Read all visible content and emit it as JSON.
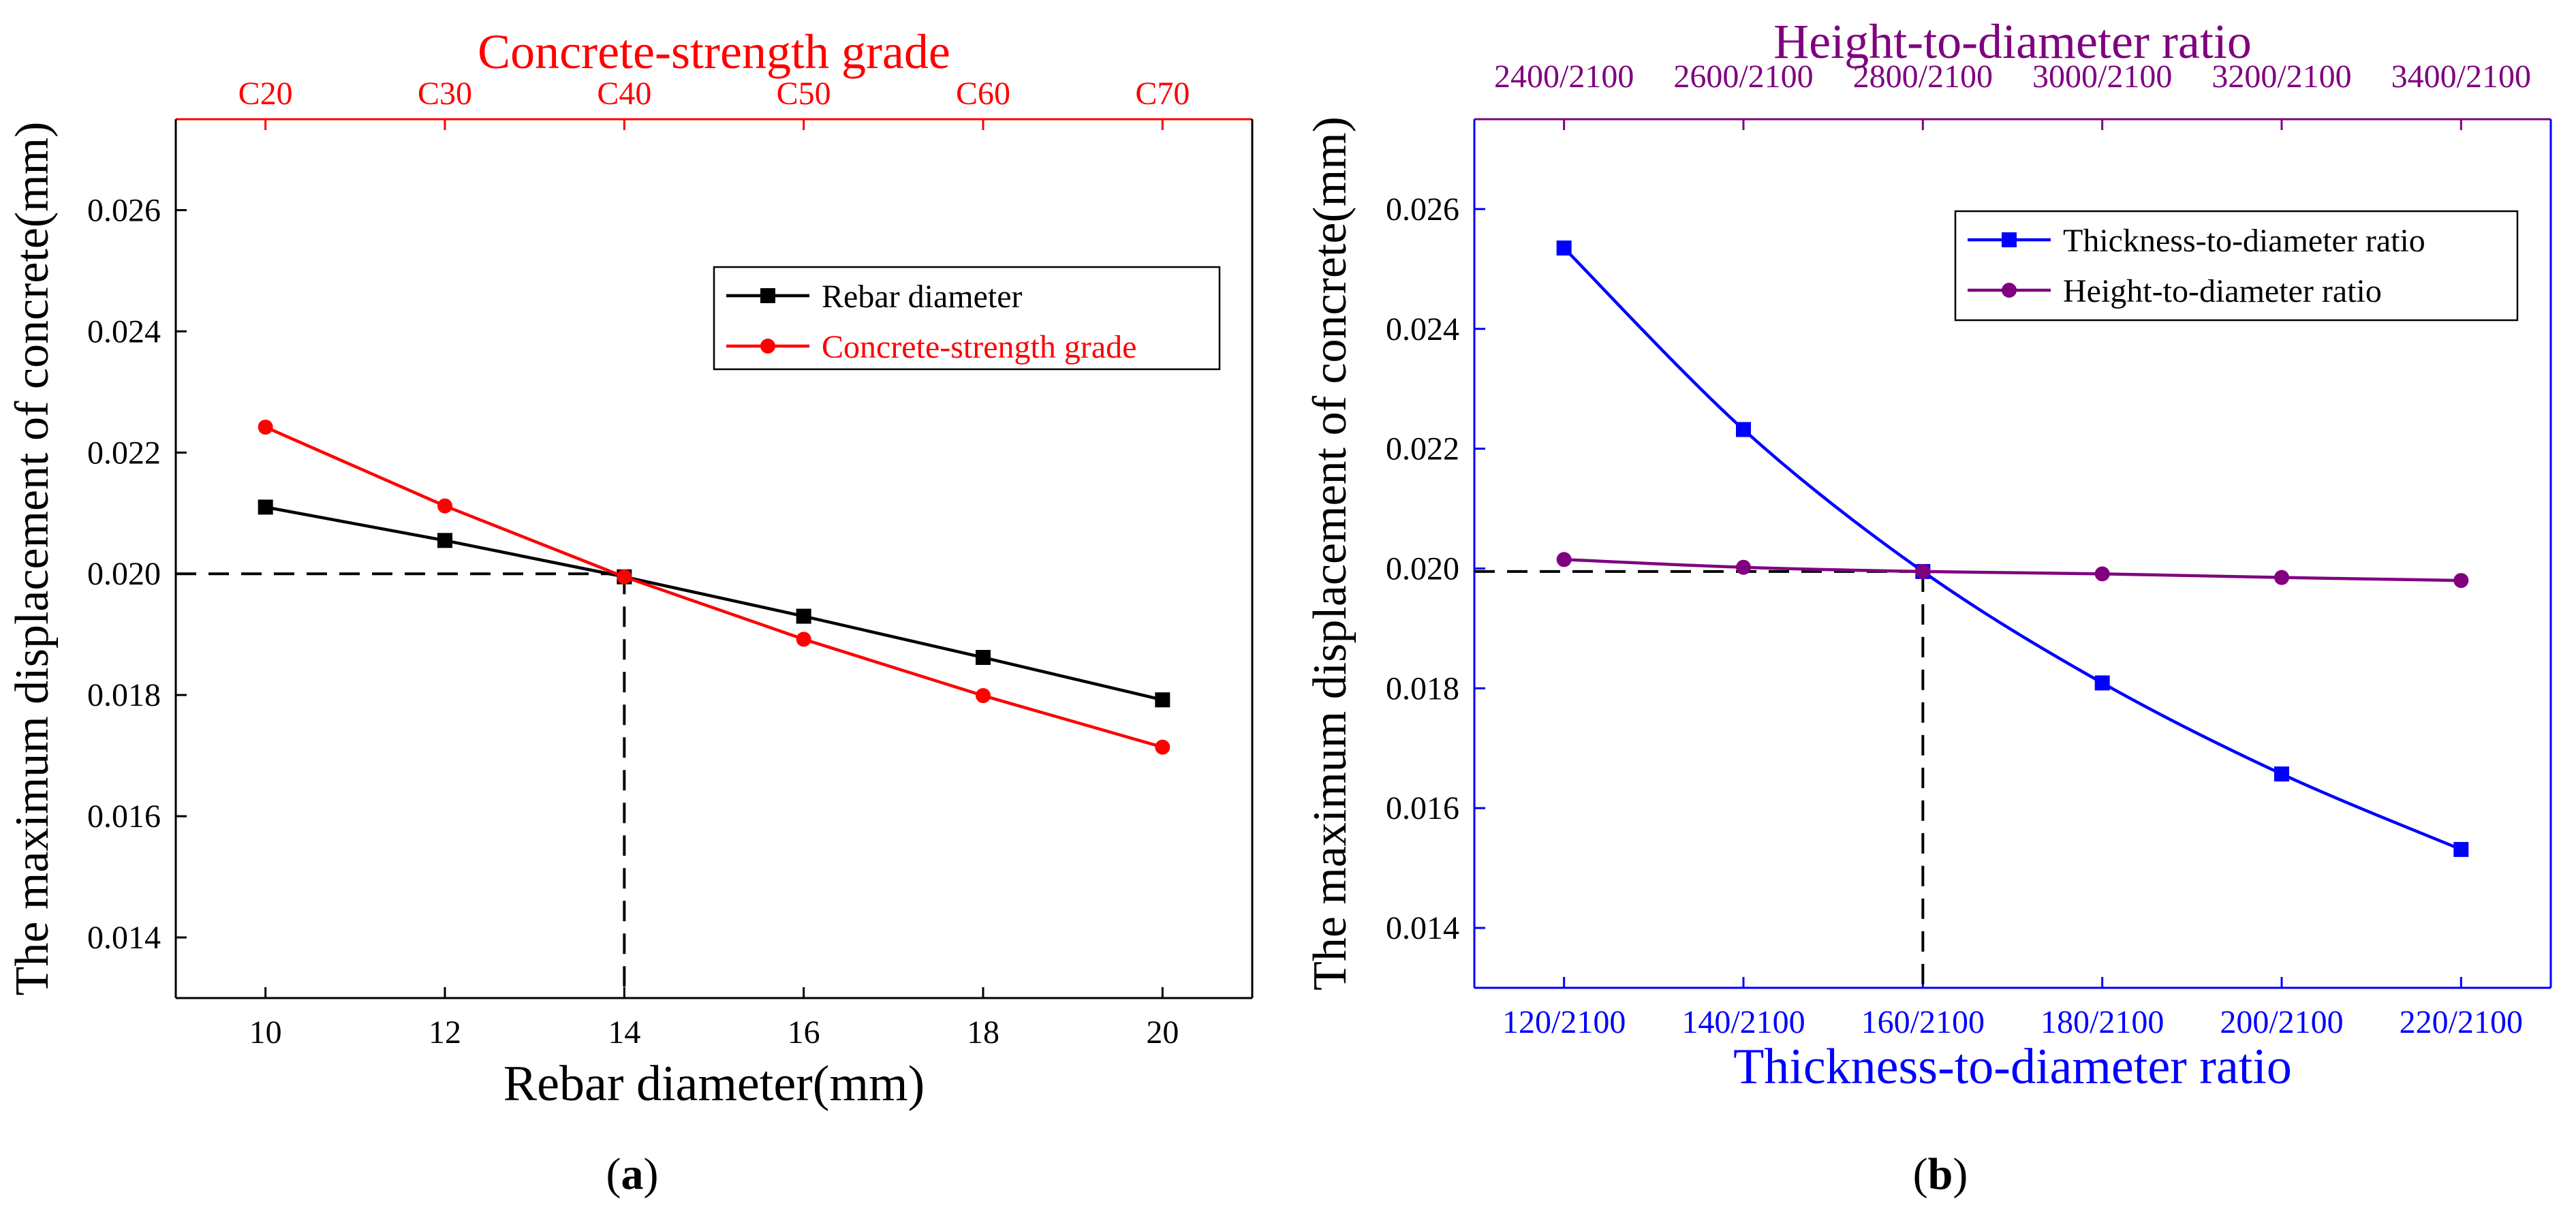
{
  "chart_data": [
    {
      "panel_label_prefix": "(",
      "panel_label_letter": "a",
      "panel_label_suffix": ")",
      "type": "line",
      "xlabel": "Rebar diameter(mm)",
      "ylabel": "The maximum displacement of concrete(mm)",
      "top_xlabel": "Concrete-strength grade",
      "x_ticks": [
        10,
        12,
        14,
        16,
        18,
        20
      ],
      "top_ticks": [
        "C20",
        "C30",
        "C40",
        "C50",
        "C60",
        "C70"
      ],
      "xlim": [
        9,
        21
      ],
      "ylim": [
        0.013,
        0.0275
      ],
      "y_ticks": [
        "0.014",
        "0.016",
        "0.018",
        "0.020",
        "0.022",
        "0.024",
        "0.026"
      ],
      "y_tick_values": [
        0.014,
        0.016,
        0.018,
        0.02,
        0.022,
        0.024,
        0.026
      ],
      "legend_position": "top-right",
      "reference_lines": {
        "y": 0.02,
        "x": 14
      },
      "series": [
        {
          "name": "Rebar diameter",
          "color": "#000000",
          "marker": "square",
          "x": [
            10,
            12,
            14,
            16,
            18,
            20
          ],
          "values": [
            0.0211,
            0.02055,
            0.01995,
            0.0193,
            0.01862,
            0.01792
          ]
        },
        {
          "name": "Concrete-strength grade",
          "color": "#ff0000",
          "marker": "circle",
          "x": [
            10,
            12,
            14,
            16,
            18,
            20
          ],
          "values": [
            0.02242,
            0.02112,
            0.01995,
            0.01892,
            0.01799,
            0.01714
          ]
        }
      ]
    },
    {
      "panel_label_prefix": "(",
      "panel_label_letter": "b",
      "panel_label_suffix": ")",
      "type": "line",
      "xlabel": "Thickness-to-diameter ratio",
      "ylabel": "The maximum displacement of concrete(mm)",
      "top_xlabel": "Height-to-diameter ratio",
      "x_ticks": [
        "120/2100",
        "140/2100",
        "160/2100",
        "180/2100",
        "200/2100",
        "220/2100"
      ],
      "top_ticks": [
        "2400/2100",
        "2600/2100",
        "2800/2100",
        "3000/2100",
        "3200/2100",
        "3400/2100"
      ],
      "xlim": [
        -0.5,
        5.5
      ],
      "ylim": [
        0.013,
        0.0275
      ],
      "y_ticks": [
        "0.014",
        "0.016",
        "0.018",
        "0.020",
        "0.022",
        "0.024",
        "0.026"
      ],
      "y_tick_values": [
        0.014,
        0.016,
        0.018,
        0.02,
        0.022,
        0.024,
        0.026
      ],
      "legend_position": "top-right",
      "reference_lines": {
        "y": 0.01995,
        "x": 2
      },
      "series": [
        {
          "name": "Thickness-to-diameter ratio",
          "color": "#0000ff",
          "marker": "square",
          "x": [
            0,
            1,
            2,
            3,
            4,
            5
          ],
          "values": [
            0.02535,
            0.02232,
            0.01995,
            0.01809,
            0.01657,
            0.01531
          ]
        },
        {
          "name": "Height-to-diameter ratio",
          "color": "#800080",
          "marker": "circle",
          "x": [
            0,
            1,
            2,
            3,
            4,
            5
          ],
          "values": [
            0.02015,
            0.02002,
            0.01995,
            0.01991,
            0.01985,
            0.0198
          ]
        }
      ]
    }
  ]
}
